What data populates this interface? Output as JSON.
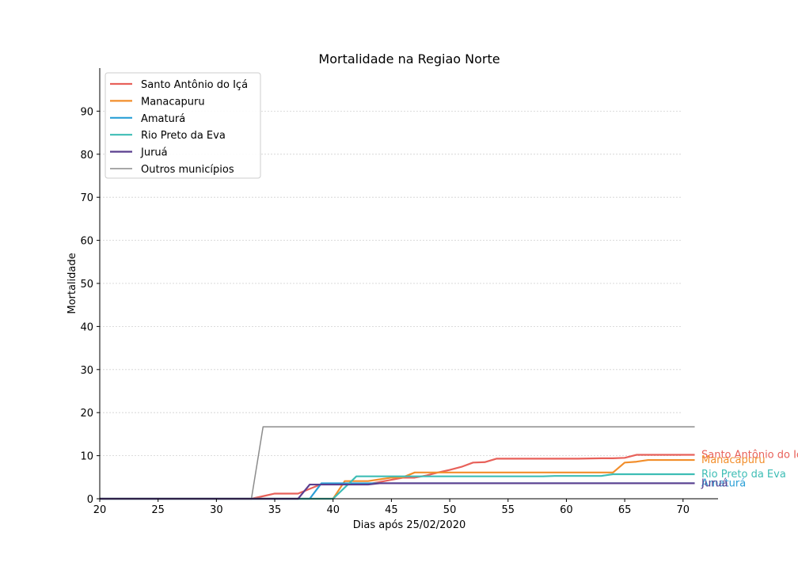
{
  "chart_data": {
    "type": "line",
    "title": "Mortalidade na Regiao Norte",
    "xlabel": "Dias após 25/02/2020",
    "ylabel": "Mortalidade",
    "xlim": [
      20,
      73
    ],
    "ylim": [
      0,
      100
    ],
    "x_ticks": [
      20,
      25,
      30,
      35,
      40,
      45,
      50,
      55,
      60,
      65,
      70
    ],
    "y_ticks": [
      0,
      10,
      20,
      30,
      40,
      50,
      60,
      70,
      80,
      90
    ],
    "grid": "horizontal",
    "legend_position": "top-left",
    "series": [
      {
        "name": "Santo Antônio do Içá",
        "end_label": "Santo Antônio do Içá",
        "color": "#e8615a",
        "x": [
          20,
          33,
          34,
          35,
          36,
          37,
          38,
          39,
          40,
          41,
          42,
          43,
          44,
          45,
          46,
          47,
          48,
          49,
          50,
          51,
          52,
          53,
          54,
          55,
          56,
          57,
          58,
          59,
          60,
          61,
          62,
          63,
          64,
          65,
          66,
          67,
          68,
          69,
          70,
          71
        ],
        "y": [
          0,
          0,
          0.6,
          1.2,
          1.2,
          1.2,
          2.3,
          3.4,
          3.4,
          3.4,
          3.4,
          3.4,
          3.9,
          4.4,
          4.9,
          4.9,
          5.4,
          6.1,
          6.7,
          7.4,
          8.4,
          8.5,
          9.3,
          9.3,
          9.3,
          9.3,
          9.3,
          9.3,
          9.3,
          9.3,
          9.35,
          9.4,
          9.4,
          9.5,
          10.2,
          10.2,
          10.2,
          10.2,
          10.2,
          10.2
        ]
      },
      {
        "name": "Manacapuru",
        "end_label": "Manacapuru",
        "color": "#f28e2b",
        "x": [
          20,
          40,
          41,
          42,
          43,
          44,
          45,
          46,
          47,
          48,
          49,
          50,
          51,
          52,
          53,
          54,
          55,
          56,
          57,
          58,
          59,
          60,
          61,
          62,
          63,
          64,
          65,
          66,
          67,
          68,
          69,
          70,
          71
        ],
        "y": [
          0,
          0,
          4.1,
          4.1,
          4.1,
          4.5,
          4.9,
          5.0,
          6.1,
          6.1,
          6.1,
          6.1,
          6.1,
          6.1,
          6.1,
          6.1,
          6.1,
          6.1,
          6.1,
          6.1,
          6.1,
          6.1,
          6.1,
          6.1,
          6.1,
          6.1,
          8.4,
          8.6,
          9.0,
          9.0,
          9.0,
          9.0,
          9.0
        ]
      },
      {
        "name": "Amaturá",
        "end_label": "Amaturá",
        "color": "#2a9fd6",
        "x": [
          20,
          38,
          39,
          40,
          41,
          42,
          43,
          44,
          45,
          46,
          47,
          48,
          49,
          50,
          51,
          52,
          53,
          54,
          55,
          56,
          57,
          58,
          59,
          60,
          61,
          62,
          63,
          64,
          65,
          66,
          67,
          68,
          69,
          70,
          71
        ],
        "y": [
          0,
          0,
          3.6,
          3.6,
          3.6,
          3.6,
          3.6,
          3.6,
          3.6,
          3.6,
          3.6,
          3.6,
          3.6,
          3.6,
          3.6,
          3.6,
          3.6,
          3.6,
          3.6,
          3.6,
          3.6,
          3.6,
          3.6,
          3.6,
          3.6,
          3.6,
          3.6,
          3.6,
          3.6,
          3.6,
          3.6,
          3.6,
          3.6,
          3.6,
          3.6
        ]
      },
      {
        "name": "Rio Preto da Eva",
        "end_label": "Rio Preto da Eva",
        "color": "#3dbdb5",
        "x": [
          20,
          40,
          41,
          42,
          43,
          44,
          45,
          46,
          47,
          48,
          49,
          50,
          51,
          52,
          53,
          54,
          55,
          56,
          57,
          58,
          59,
          60,
          61,
          62,
          63,
          64,
          65,
          66,
          67,
          68,
          69,
          70,
          71
        ],
        "y": [
          0,
          0,
          2.6,
          5.2,
          5.2,
          5.2,
          5.2,
          5.2,
          5.2,
          5.2,
          5.2,
          5.2,
          5.2,
          5.2,
          5.2,
          5.2,
          5.2,
          5.2,
          5.2,
          5.2,
          5.3,
          5.3,
          5.3,
          5.3,
          5.3,
          5.7,
          5.7,
          5.7,
          5.7,
          5.7,
          5.7,
          5.7,
          5.7
        ]
      },
      {
        "name": "Juruá",
        "end_label": "Juruá",
        "color": "#5b3f8f",
        "x": [
          20,
          37,
          38,
          39,
          40,
          41,
          42,
          43,
          44,
          45,
          46,
          47,
          48,
          49,
          50,
          51,
          52,
          53,
          54,
          55,
          56,
          57,
          58,
          59,
          60,
          61,
          62,
          63,
          64,
          65,
          66,
          67,
          68,
          69,
          70,
          71
        ],
        "y": [
          0,
          0,
          3.3,
          3.3,
          3.3,
          3.3,
          3.3,
          3.3,
          3.6,
          3.6,
          3.6,
          3.6,
          3.6,
          3.6,
          3.6,
          3.6,
          3.6,
          3.6,
          3.6,
          3.6,
          3.6,
          3.6,
          3.6,
          3.6,
          3.6,
          3.6,
          3.6,
          3.6,
          3.6,
          3.6,
          3.6,
          3.6,
          3.6,
          3.6,
          3.6,
          3.6
        ]
      },
      {
        "name": "Outros municípios",
        "color": "#8c8c8c",
        "x": [
          20,
          33,
          34,
          71
        ],
        "y": [
          0,
          0,
          16.7,
          16.7
        ]
      }
    ]
  }
}
